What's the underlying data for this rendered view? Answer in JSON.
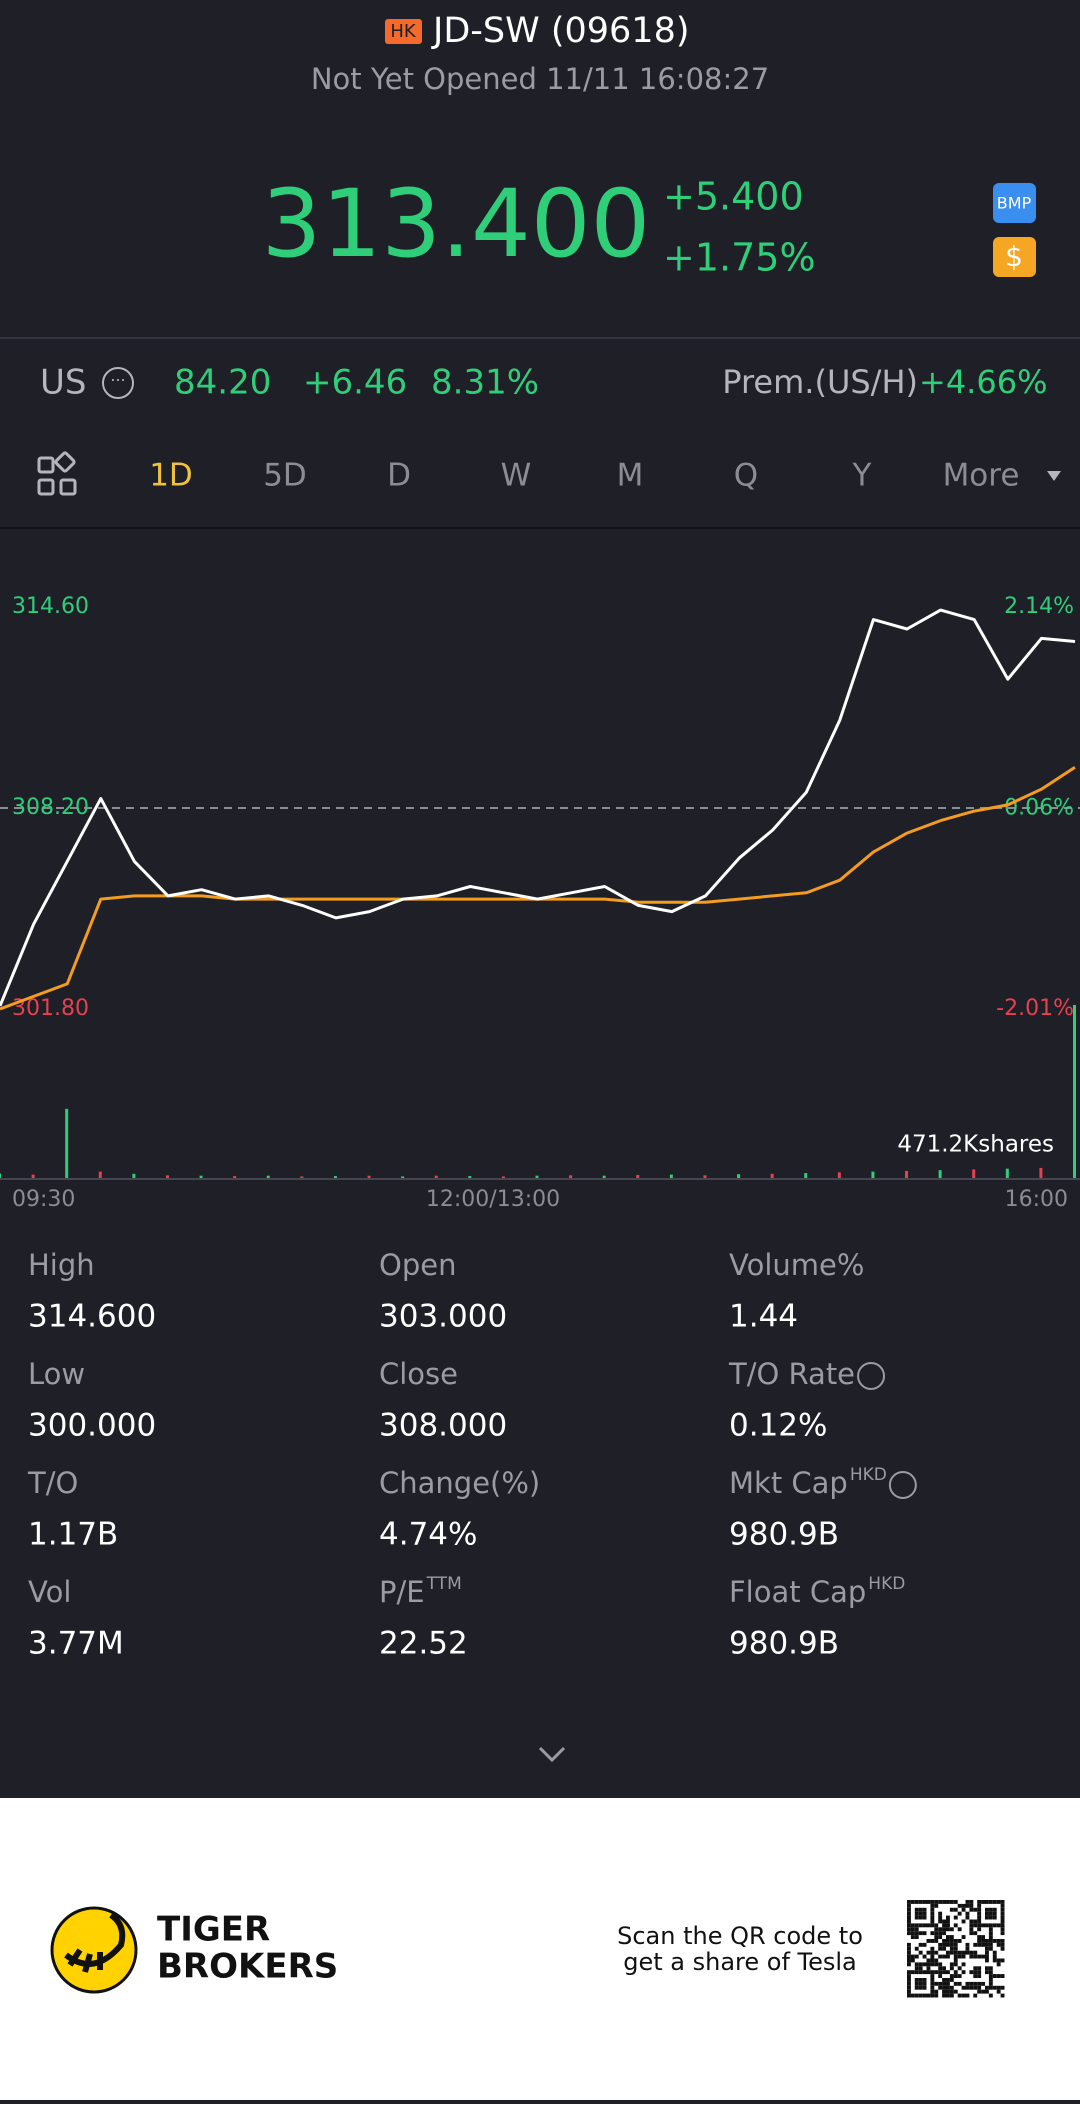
{
  "header": {
    "badge": "HK",
    "title": "JD-SW (09618)",
    "status": "Not Yet Opened 11/11 16:08:27"
  },
  "quote": {
    "price": "313.400",
    "change": "+5.400",
    "change_pct": "+1.75%",
    "icons": [
      "BMP",
      "$"
    ]
  },
  "us_row": {
    "label": "US",
    "price": "84.20",
    "change": "+6.46",
    "change_pct": "8.31%",
    "premium_label": "Prem.(US/H)",
    "premium": "+4.66%"
  },
  "tabs": {
    "items": [
      "1D",
      "5D",
      "D",
      "W",
      "M",
      "Q",
      "Y",
      "More"
    ],
    "active": 0
  },
  "chart_data": {
    "type": "line",
    "ylim": [
      301.8,
      314.6
    ],
    "yticks": [
      {
        "value": 314.6,
        "label": "314.60"
      },
      {
        "value": 308.2,
        "label": "308.20"
      },
      {
        "value": 301.8,
        "label": "301.80"
      }
    ],
    "y2lim": [
      -2.01,
      2.14
    ],
    "y2ticks": [
      {
        "value": 2.14,
        "label": "2.14%"
      },
      {
        "value": 0.06,
        "label": "0.06%"
      },
      {
        "value": -2.01,
        "label": "-2.01%"
      }
    ],
    "x_labels": [
      "09:30",
      "12:00/13:00",
      "16:00"
    ],
    "series": [
      {
        "name": "Price",
        "color": "#ffffff",
        "values": [
          301.9,
          304.5,
          306.5,
          308.5,
          306.5,
          305.4,
          305.6,
          305.3,
          305.4,
          305.1,
          304.7,
          304.9,
          305.3,
          305.4,
          305.7,
          305.5,
          305.3,
          305.5,
          305.7,
          305.1,
          304.9,
          305.4,
          306.6,
          307.5,
          308.7,
          311.0,
          314.2,
          313.9,
          314.5,
          314.2,
          312.3,
          313.6,
          313.5
        ]
      },
      {
        "name": "Average",
        "color": "#f39c1f",
        "values": [
          301.8,
          302.2,
          302.6,
          305.3,
          305.4,
          305.4,
          305.4,
          305.3,
          305.3,
          305.3,
          305.3,
          305.3,
          305.3,
          305.3,
          305.3,
          305.3,
          305.3,
          305.3,
          305.3,
          305.2,
          305.2,
          305.2,
          305.3,
          305.4,
          305.5,
          305.9,
          306.8,
          307.4,
          307.8,
          308.1,
          308.3,
          308.8,
          309.5
        ]
      }
    ],
    "volume": {
      "label": "471.2Kshares",
      "ylim": [
        0,
        471200
      ],
      "values": [
        15000,
        12000,
        190000,
        20000,
        14000,
        10000,
        9000,
        8000,
        9000,
        7000,
        8000,
        9000,
        7000,
        9000,
        8000,
        7000,
        9000,
        10000,
        9000,
        11000,
        12000,
        10000,
        13000,
        14000,
        16000,
        18000,
        20000,
        22000,
        24000,
        26000,
        28000,
        30000,
        471200
      ],
      "colors": [
        "#2fcf7a",
        "#e5414f",
        "#2fcf7a",
        "#e5414f",
        "#2fcf7a",
        "#e5414f",
        "#2fcf7a",
        "#e5414f",
        "#2fcf7a",
        "#e5414f",
        "#2fcf7a",
        "#e5414f",
        "#2fcf7a",
        "#e5414f",
        "#2fcf7a",
        "#e5414f",
        "#2fcf7a",
        "#e5414f",
        "#2fcf7a",
        "#e5414f",
        "#2fcf7a",
        "#e5414f",
        "#2fcf7a",
        "#e5414f",
        "#2fcf7a",
        "#e5414f",
        "#2fcf7a",
        "#e5414f",
        "#2fcf7a",
        "#e5414f",
        "#2fcf7a",
        "#e5414f",
        "#2fcf7a"
      ]
    }
  },
  "stats": [
    [
      {
        "label": "High",
        "value": "314.600"
      },
      {
        "label": "Open",
        "value": "303.000"
      },
      {
        "label": "Volume%",
        "value": "1.44"
      }
    ],
    [
      {
        "label": "Low",
        "value": "300.000"
      },
      {
        "label": "Close",
        "value": "308.000"
      },
      {
        "label": "T/O Rate",
        "value": "0.12%",
        "info": true
      }
    ],
    [
      {
        "label": "T/O",
        "value": "1.17B"
      },
      {
        "label": "Change(%)",
        "value": "4.74%"
      },
      {
        "label": "Mkt Cap",
        "sup": "HKD",
        "value": "980.9B",
        "info": true
      }
    ],
    [
      {
        "label": "Vol",
        "value": "3.77M"
      },
      {
        "label": "P/E",
        "sup": "TTM",
        "value": "22.52"
      },
      {
        "label": "Float Cap",
        "sup": "HKD",
        "value": "980.9B"
      }
    ]
  ],
  "footer": {
    "brand": [
      "TIGER",
      "BROKERS"
    ],
    "promo": [
      "Scan the QR code to",
      "get a share of Tesla"
    ]
  }
}
